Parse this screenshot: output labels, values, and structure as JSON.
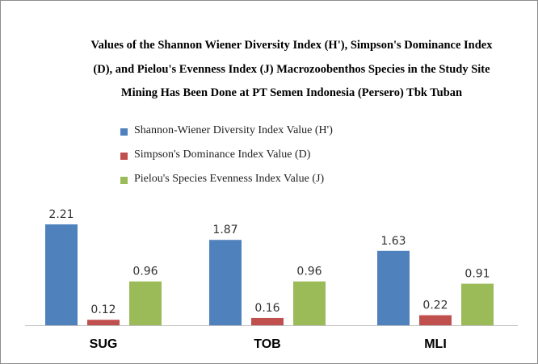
{
  "chart_data": {
    "type": "bar",
    "title_lines": [
      "Values of the Shannon Wiener Diversity Index (H'), Simpson's Dominance Index",
      "(D), and Pielou's Evenness Index (J) Macrozoobenthos Species in the Study Site",
      "Mining Has Been Done at PT Semen Indonesia (Persero) Tbk Tuban"
    ],
    "categories": [
      "SUG",
      "TOB",
      "MLI"
    ],
    "series": [
      {
        "name": "Shannon-Wiener Diversity Index Value (H')",
        "values": [
          2.21,
          1.87,
          1.63
        ],
        "value_labels": [
          "2.21",
          "1.87",
          "1.63"
        ],
        "color": "#4f81bd"
      },
      {
        "name": "Simpson's Dominance Index Value (D)",
        "values": [
          0.12,
          0.16,
          0.22
        ],
        "value_labels": [
          "0.12",
          "0.16",
          "0.22"
        ],
        "color": "#c0504d"
      },
      {
        "name": "Pielou's Species Evenness Index Value (J)",
        "values": [
          0.96,
          0.96,
          0.91
        ],
        "value_labels": [
          "0.96",
          "0.96",
          "0.91"
        ],
        "color": "#9bbb59"
      }
    ],
    "ylim": [
      0,
      2.21
    ],
    "grid": false,
    "legend_position": "top-left",
    "xlabel": "",
    "ylabel": ""
  }
}
